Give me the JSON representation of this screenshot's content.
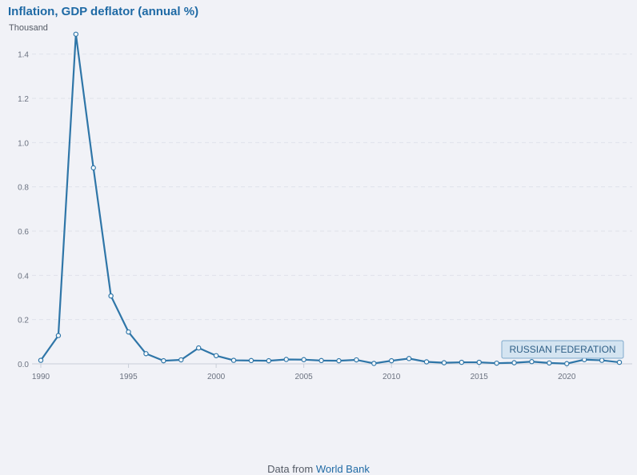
{
  "header": {
    "title": "Inflation, GDP deflator (annual %)",
    "unit": "Thousand"
  },
  "footer": {
    "prefix": "Data from",
    "source_link": "World Bank"
  },
  "colors": {
    "line": "#2f76a8",
    "title": "#1f6aa5",
    "grid": "#dfe2ea",
    "label_fill": "#d4e4f1",
    "label_stroke": "#7ea9cc"
  },
  "chart_data": {
    "type": "line",
    "title": "Inflation, GDP deflator (annual %)",
    "ylabel": "Thousand",
    "xlabel": "",
    "ylim": [
      0,
      1.5
    ],
    "yticks": [
      "0.0",
      "0.2",
      "0.4",
      "0.6",
      "0.8",
      "1.0",
      "1.2",
      "1.4"
    ],
    "xticks": [
      "1990",
      "1995",
      "2000",
      "2005",
      "2010",
      "2015",
      "2020"
    ],
    "grid": "horizontal dashed",
    "series": [
      {
        "name": "RUSSIAN FEDERATION",
        "x": [
          1990,
          1991,
          1992,
          1993,
          1994,
          1995,
          1996,
          1997,
          1998,
          1999,
          2000,
          2001,
          2002,
          2003,
          2004,
          2005,
          2006,
          2007,
          2008,
          2009,
          2010,
          2011,
          2012,
          2013,
          2014,
          2015,
          2016,
          2017,
          2018,
          2019,
          2020,
          2021,
          2022,
          2023
        ],
        "values": [
          0.016,
          0.128,
          1.49,
          0.886,
          0.307,
          0.144,
          0.046,
          0.014,
          0.018,
          0.072,
          0.037,
          0.016,
          0.015,
          0.014,
          0.02,
          0.019,
          0.015,
          0.014,
          0.018,
          0.002,
          0.014,
          0.024,
          0.009,
          0.005,
          0.007,
          0.007,
          0.003,
          0.005,
          0.01,
          0.004,
          0.001,
          0.019,
          0.016,
          0.007
        ]
      }
    ]
  }
}
